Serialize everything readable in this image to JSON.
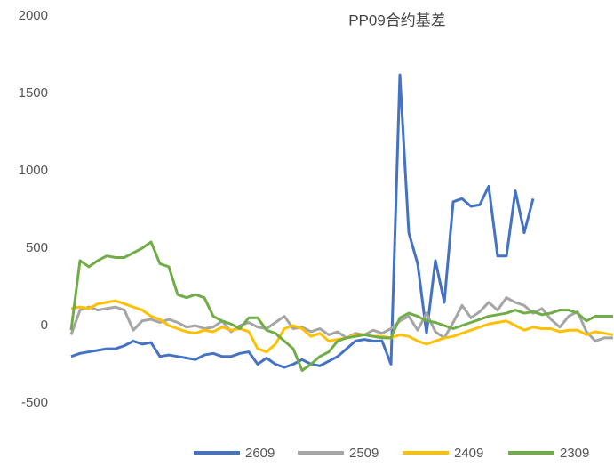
{
  "chart_data": {
    "type": "line",
    "title": "PP09合约基差",
    "ylim": [
      -500,
      2000
    ],
    "yticks": [
      -500,
      0,
      500,
      1000,
      1500,
      2000
    ],
    "legend": "bottom",
    "series": [
      {
        "name": "2609",
        "color": "#4472c4",
        "values": [
          -200,
          -180,
          -170,
          -160,
          -150,
          -150,
          -130,
          -100,
          -120,
          -110,
          -200,
          -190,
          -200,
          -210,
          -220,
          -190,
          -180,
          -200,
          -200,
          -180,
          -170,
          -250,
          -210,
          -250,
          -270,
          -250,
          -220,
          -250,
          -260,
          -230,
          -200,
          -150,
          -100,
          -90,
          -100,
          -100,
          -250,
          1620,
          600,
          400,
          -50,
          420,
          150,
          800,
          820,
          770,
          780,
          900,
          450,
          450,
          870,
          600,
          820,
          null,
          null,
          null,
          null,
          null,
          null,
          null,
          null,
          null
        ]
      },
      {
        "name": "2509",
        "color": "#a5a5a5",
        "values": [
          -60,
          100,
          120,
          100,
          110,
          120,
          100,
          -30,
          30,
          40,
          20,
          40,
          20,
          -10,
          0,
          -20,
          -10,
          30,
          -40,
          0,
          20,
          -10,
          -20,
          20,
          60,
          -20,
          -10,
          -40,
          -20,
          -60,
          -40,
          -80,
          -50,
          -60,
          -30,
          -50,
          -20,
          30,
          60,
          -30,
          80,
          -40,
          -80,
          20,
          130,
          50,
          90,
          150,
          100,
          180,
          150,
          130,
          80,
          110,
          40,
          -10,
          60,
          90,
          -40,
          -100,
          -80,
          -80
        ]
      },
      {
        "name": "2409",
        "color": "#ffc000",
        "values": [
          110,
          120,
          110,
          140,
          150,
          160,
          140,
          120,
          100,
          60,
          40,
          0,
          -20,
          -40,
          -50,
          -30,
          -40,
          -10,
          -30,
          -20,
          -40,
          -150,
          -170,
          -120,
          -20,
          0,
          -20,
          -70,
          -50,
          -100,
          -90,
          -80,
          -60,
          -60,
          -70,
          -70,
          -80,
          -60,
          -70,
          -100,
          -120,
          -100,
          -80,
          -70,
          -50,
          -30,
          -10,
          10,
          20,
          30,
          0,
          -30,
          -10,
          -20,
          -20,
          -40,
          -30,
          -30,
          -60,
          -40,
          -50,
          -60
        ]
      },
      {
        "name": "2309",
        "color": "#70ad47",
        "values": [
          -30,
          420,
          380,
          420,
          450,
          440,
          440,
          470,
          500,
          540,
          400,
          380,
          200,
          180,
          200,
          180,
          60,
          30,
          10,
          -20,
          50,
          50,
          -30,
          -50,
          -100,
          -150,
          -290,
          -250,
          -200,
          -170,
          -100,
          -80,
          -70,
          -60,
          -70,
          -80,
          -80,
          50,
          80,
          60,
          30,
          20,
          0,
          -20,
          0,
          20,
          40,
          60,
          70,
          80,
          100,
          80,
          90,
          70,
          80,
          100,
          100,
          80,
          30,
          60,
          60,
          60
        ]
      }
    ]
  }
}
